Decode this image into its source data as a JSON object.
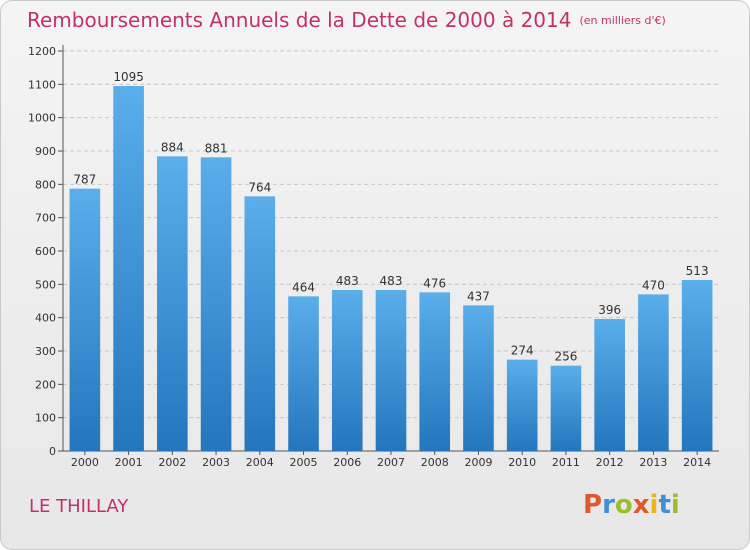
{
  "header": {
    "title": "Remboursements Annuels de la Dette de 2000 à 2014",
    "unit": "(en milliers d'€)"
  },
  "footer": {
    "town": "LE THILLAY",
    "logo_letters": [
      "P",
      "r",
      "o",
      "x",
      "i",
      "t",
      "i"
    ]
  },
  "colors": {
    "title": "#c2326a",
    "bar_top": "#5aaeea",
    "bar_bottom": "#2476bd",
    "grid": "#c8c8c8"
  },
  "chart_data": {
    "type": "bar",
    "title": "Remboursements Annuels de la Dette de 2000 à 2014",
    "unit": "(en milliers d'€)",
    "categories": [
      "2000",
      "2001",
      "2002",
      "2003",
      "2004",
      "2005",
      "2006",
      "2007",
      "2008",
      "2009",
      "2010",
      "2011",
      "2012",
      "2013",
      "2014"
    ],
    "values": [
      787,
      1095,
      884,
      881,
      764,
      464,
      483,
      483,
      476,
      437,
      274,
      256,
      396,
      470,
      513
    ],
    "data_labels": [
      "787",
      "1095",
      "884",
      "881",
      "764",
      "464",
      "483",
      "483",
      "476",
      "437",
      "274",
      "256",
      "396",
      "470",
      "513"
    ],
    "ylim": [
      0,
      1200
    ],
    "yticks": [
      0,
      100,
      200,
      300,
      400,
      500,
      600,
      700,
      800,
      900,
      1000,
      1100,
      1200
    ],
    "xlabel": "",
    "ylabel": "",
    "grid": true,
    "legend": "none"
  }
}
